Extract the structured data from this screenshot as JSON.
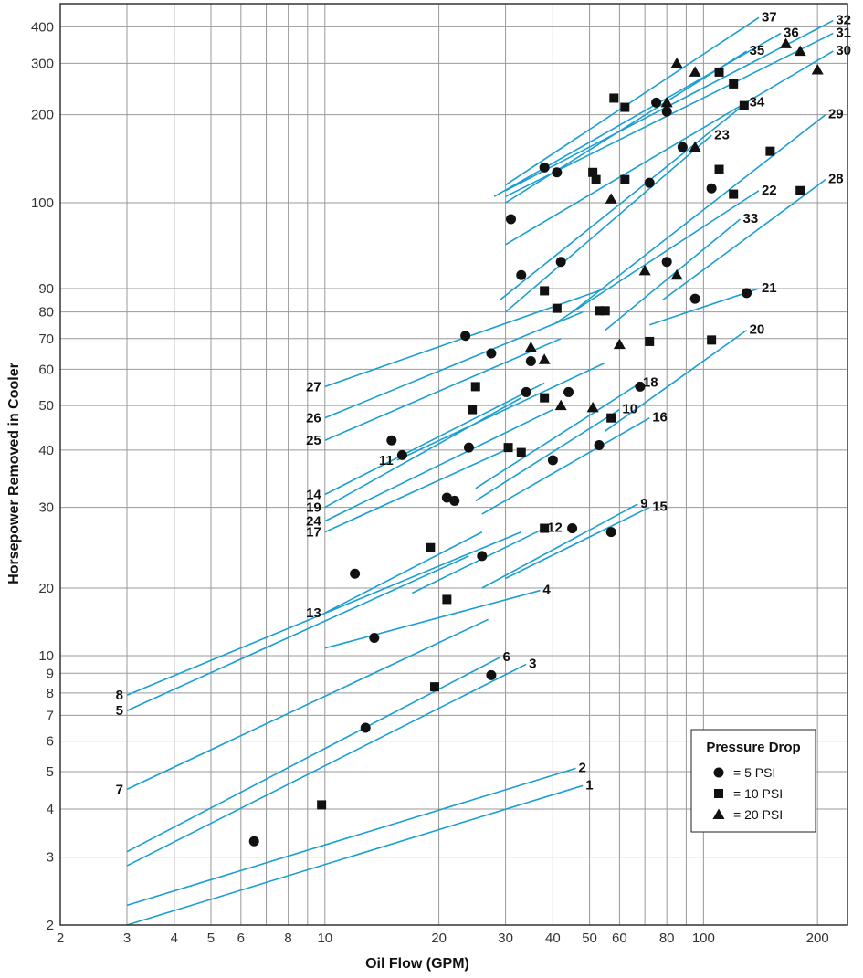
{
  "chart_data": {
    "type": "line",
    "title": "",
    "xlabel": "Oil Flow (GPM)",
    "ylabel": "Horsepower Removed in Cooler",
    "x_scale": "log",
    "y_scale": "log (broken: 2–20 and 90–400)",
    "xlim": [
      2,
      240
    ],
    "ylim": [
      2,
      480
    ],
    "grid": true,
    "x_ticks": [
      "2",
      "3",
      "4",
      "5",
      "6",
      "8",
      "10",
      "20",
      "30",
      "40",
      "50",
      "60",
      "80",
      "100",
      "200"
    ],
    "y_ticks": [
      "2",
      "3",
      "4",
      "5",
      "6",
      "7",
      "8",
      "9",
      "10",
      "20",
      "30",
      "40",
      "50",
      "60",
      "70",
      "80",
      "90",
      "100",
      "200",
      "300",
      "400"
    ],
    "legend": {
      "title": "Pressure Drop",
      "position": "bottom-right",
      "entries": [
        {
          "marker": "circle",
          "label": "=    5 PSI"
        },
        {
          "marker": "square",
          "label": "=  10 PSI"
        },
        {
          "marker": "triangle",
          "label": "=  20 PSI"
        }
      ]
    },
    "line_color": "#1a9fd1",
    "marker_color": "#111111",
    "series": [
      {
        "name": "1",
        "label_side": "end",
        "x": [
          3,
          48
        ],
        "y": [
          2.0,
          4.6
        ],
        "markers": []
      },
      {
        "name": "2",
        "label_side": "end",
        "x": [
          3,
          46
        ],
        "y": [
          2.25,
          5.1
        ],
        "markers": [
          {
            "x": 6.5,
            "y": 3.3,
            "shape": "circle"
          },
          {
            "x": 9.8,
            "y": 4.1,
            "shape": "square"
          }
        ]
      },
      {
        "name": "3",
        "label_side": "end",
        "x": [
          3,
          34
        ],
        "y": [
          2.85,
          9.5
        ],
        "markers": [
          {
            "x": 12.8,
            "y": 6.5,
            "shape": "circle"
          },
          {
            "x": 27.5,
            "y": 8.9,
            "shape": "circle"
          }
        ]
      },
      {
        "name": "6",
        "label_side": "end",
        "x": [
          3,
          29
        ],
        "y": [
          3.1,
          9.9
        ],
        "markers": [
          {
            "x": 19.5,
            "y": 8.3,
            "shape": "square"
          }
        ]
      },
      {
        "name": "7",
        "label_side": "start",
        "x": [
          3,
          27
        ],
        "y": [
          4.5,
          14.5
        ],
        "markers": []
      },
      {
        "name": "4",
        "label_side": "end",
        "x": [
          10,
          37
        ],
        "y": [
          10.8,
          19.5
        ],
        "markers": [
          {
            "x": 13.5,
            "y": 12.0,
            "shape": "circle"
          },
          {
            "x": 21,
            "y": 17.8,
            "shape": "square"
          }
        ]
      },
      {
        "name": "5",
        "label_side": "start",
        "x": [
          3,
          24
        ],
        "y": [
          7.2,
          23.5
        ],
        "markers": []
      },
      {
        "name": "8",
        "label_side": "start",
        "x": [
          3,
          33
        ],
        "y": [
          7.9,
          26.5
        ],
        "markers": []
      },
      {
        "name": "13",
        "label_side": "start",
        "x": [
          10,
          26
        ],
        "y": [
          15.5,
          26.5
        ],
        "markers": [
          {
            "x": 12,
            "y": 21.5,
            "shape": "circle"
          }
        ]
      },
      {
        "name": "12",
        "label_side": "end",
        "x": [
          17,
          38
        ],
        "y": [
          19.0,
          27.0
        ],
        "markers": [
          {
            "x": 19,
            "y": 24.5,
            "shape": "square"
          },
          {
            "x": 26,
            "y": 23.5,
            "shape": "circle"
          },
          {
            "x": 38,
            "y": 27.0,
            "shape": "square"
          }
        ]
      },
      {
        "name": "9",
        "label_side": "end",
        "x": [
          26,
          67
        ],
        "y": [
          20.0,
          30.5
        ],
        "markers": [
          {
            "x": 45,
            "y": 27.0,
            "shape": "circle"
          }
        ]
      },
      {
        "name": "15",
        "label_side": "end",
        "x": [
          30,
          72
        ],
        "y": [
          21.0,
          30.0
        ],
        "markers": [
          {
            "x": 57,
            "y": 26.5,
            "shape": "circle"
          }
        ]
      },
      {
        "name": "17",
        "label_side": "start",
        "x": [
          10,
          30
        ],
        "y": [
          26.5,
          40.0
        ],
        "markers": []
      },
      {
        "name": "24",
        "label_side": "start",
        "x": [
          10,
          40
        ],
        "y": [
          28.0,
          49.0
        ],
        "markers": []
      },
      {
        "name": "19",
        "label_side": "start",
        "x": [
          10,
          33
        ],
        "y": [
          30.0,
          52.0
        ],
        "markers": [
          {
            "x": 15,
            "y": 42,
            "shape": "circle"
          },
          {
            "x": 16,
            "y": 39,
            "shape": "circle"
          }
        ]
      },
      {
        "name": "11",
        "label_side": "start",
        "x": [
          15.5,
          55
        ],
        "y": [
          38.0,
          62.0
        ],
        "markers": [
          {
            "x": 21,
            "y": 31.5,
            "shape": "circle"
          },
          {
            "x": 22,
            "y": 31.0,
            "shape": "circle"
          },
          {
            "x": 24,
            "y": 40.5,
            "shape": "circle"
          }
        ]
      },
      {
        "name": "14",
        "label_side": "start",
        "x": [
          10,
          38
        ],
        "y": [
          32.0,
          56.0
        ],
        "markers": []
      },
      {
        "name": "16",
        "label_side": "end",
        "x": [
          26,
          72
        ],
        "y": [
          29.0,
          47.0
        ],
        "markers": [
          {
            "x": 40,
            "y": 38.0,
            "shape": "circle"
          },
          {
            "x": 53,
            "y": 41.0,
            "shape": "circle"
          }
        ]
      },
      {
        "name": "10",
        "label_side": "end",
        "x": [
          25,
          60
        ],
        "y": [
          31.0,
          49.0
        ],
        "markers": [
          {
            "x": 30.5,
            "y": 40.5,
            "shape": "square"
          },
          {
            "x": 33,
            "y": 39.5,
            "shape": "square"
          },
          {
            "x": 57,
            "y": 47.0,
            "shape": "square"
          }
        ]
      },
      {
        "name": "18",
        "label_side": "end",
        "x": [
          25,
          68
        ],
        "y": [
          33.0,
          56.0
        ],
        "markers": [
          {
            "x": 42,
            "y": 50.0,
            "shape": "triangle"
          },
          {
            "x": 51,
            "y": 49.5,
            "shape": "triangle"
          },
          {
            "x": 68,
            "y": 55.0,
            "shape": "circle"
          }
        ]
      },
      {
        "name": "25",
        "label_side": "start",
        "x": [
          10,
          42
        ],
        "y": [
          42.0,
          70.0
        ],
        "markers": [
          {
            "x": 24.5,
            "y": 49.0,
            "shape": "square"
          },
          {
            "x": 34,
            "y": 53.5,
            "shape": "circle"
          },
          {
            "x": 38,
            "y": 52.0,
            "shape": "square"
          },
          {
            "x": 44,
            "y": 53.5,
            "shape": "circle"
          }
        ]
      },
      {
        "name": "26",
        "label_side": "start",
        "x": [
          10,
          48
        ],
        "y": [
          47.0,
          80.0
        ],
        "markers": [
          {
            "x": 25,
            "y": 55.0,
            "shape": "square"
          },
          {
            "x": 35,
            "y": 62.5,
            "shape": "circle"
          },
          {
            "x": 35,
            "y": 67.0,
            "shape": "triangle"
          },
          {
            "x": 38,
            "y": 63.0,
            "shape": "triangle"
          }
        ]
      },
      {
        "name": "27",
        "label_side": "start",
        "x": [
          10,
          55
        ],
        "y": [
          55.0,
          90.0
        ],
        "markers": [
          {
            "x": 23.5,
            "y": 71.0,
            "shape": "circle"
          },
          {
            "x": 27.5,
            "y": 65.0,
            "shape": "circle"
          }
        ]
      },
      {
        "name": "20",
        "label_side": "end",
        "x": [
          55,
          130
        ],
        "y": [
          44.0,
          73.0
        ],
        "markers": [
          {
            "x": 105,
            "y": 69.5,
            "shape": "square"
          }
        ]
      },
      {
        "name": "21",
        "label_side": "end",
        "x": [
          72,
          140
        ],
        "y": [
          75.0,
          90.0
        ],
        "markers": [
          {
            "x": 95,
            "y": 85.5,
            "shape": "circle"
          },
          {
            "x": 130,
            "y": 88.0,
            "shape": "circle"
          }
        ]
      },
      {
        "name": "33",
        "label_side": "end",
        "x": [
          55,
          125
        ],
        "y": [
          73.0,
          98.0
        ],
        "markers": [
          {
            "x": 53,
            "y": 80.5,
            "shape": "square"
          },
          {
            "x": 60,
            "y": 68.0,
            "shape": "triangle"
          },
          {
            "x": 72,
            "y": 69.0,
            "shape": "square"
          }
        ]
      },
      {
        "name": "22",
        "label_side": "end",
        "x": [
          40,
          140
        ],
        "y": [
          75.0,
          110.0
        ],
        "markers": [
          {
            "x": 80,
            "y": 93.0,
            "shape": "circle"
          },
          {
            "x": 85,
            "y": 91.5,
            "shape": "triangle"
          },
          {
            "x": 70,
            "y": 92.0,
            "shape": "triangle"
          }
        ]
      },
      {
        "name": "28",
        "label_side": "end",
        "x": [
          78,
          210
        ],
        "y": [
          85.0,
          120.0
        ],
        "markers": [
          {
            "x": 180,
            "y": 110.0,
            "shape": "square"
          }
        ]
      },
      {
        "name": "29",
        "label_side": "end",
        "x": [
          45,
          210
        ],
        "y": [
          80.0,
          200.0
        ],
        "markers": [
          {
            "x": 120,
            "y": 107.0,
            "shape": "square"
          },
          {
            "x": 105,
            "y": 112.0,
            "shape": "circle"
          },
          {
            "x": 150,
            "y": 150.0,
            "shape": "square"
          }
        ]
      },
      {
        "name": "23",
        "label_side": "end",
        "x": [
          30,
          105
        ],
        "y": [
          80.0,
          170.0
        ],
        "markers": [
          {
            "x": 31,
            "y": 98.0,
            "shape": "circle"
          },
          {
            "x": 33,
            "y": 91.5,
            "shape": "circle"
          },
          {
            "x": 42,
            "y": 93.0,
            "shape": "circle"
          },
          {
            "x": 38,
            "y": 89.0,
            "shape": "square"
          }
        ]
      },
      {
        "name": "34",
        "label_side": "end",
        "x": [
          29,
          130
        ],
        "y": [
          85.0,
          220.0
        ],
        "markers": [
          {
            "x": 41,
            "y": 81.5,
            "shape": "square"
          },
          {
            "x": 55,
            "y": 80.5,
            "shape": "square"
          },
          {
            "x": 57,
            "y": 103.0,
            "shape": "triangle"
          },
          {
            "x": 62,
            "y": 120.0,
            "shape": "square"
          },
          {
            "x": 72,
            "y": 117.0,
            "shape": "circle"
          },
          {
            "x": 88,
            "y": 155.0,
            "shape": "circle"
          },
          {
            "x": 95,
            "y": 155.0,
            "shape": "triangle"
          },
          {
            "x": 110,
            "y": 130.0,
            "shape": "square"
          },
          {
            "x": 128,
            "y": 215.0,
            "shape": "square"
          }
        ]
      },
      {
        "name": "30",
        "label_side": "end",
        "x": [
          30,
          220
        ],
        "y": [
          95.0,
          330.0
        ],
        "markers": [
          {
            "x": 51,
            "y": 127.0,
            "shape": "square"
          },
          {
            "x": 52,
            "y": 120.0,
            "shape": "square"
          },
          {
            "x": 120,
            "y": 255.0,
            "shape": "square"
          },
          {
            "x": 200,
            "y": 285.0,
            "shape": "triangle"
          }
        ]
      },
      {
        "name": "35",
        "label_side": "end",
        "x": [
          30,
          130
        ],
        "y": [
          100.0,
          330.0
        ],
        "markers": [
          {
            "x": 41,
            "y": 127.0,
            "shape": "circle"
          },
          {
            "x": 75,
            "y": 220.0,
            "shape": "circle"
          },
          {
            "x": 80,
            "y": 220.0,
            "shape": "triangle"
          },
          {
            "x": 80,
            "y": 205.0,
            "shape": "circle"
          },
          {
            "x": 95,
            "y": 280.0,
            "shape": "triangle"
          },
          {
            "x": 110,
            "y": 280.0,
            "shape": "square"
          }
        ]
      },
      {
        "name": "31",
        "label_side": "end",
        "x": [
          30,
          220
        ],
        "y": [
          105.0,
          380.0
        ],
        "markers": [
          {
            "x": 180,
            "y": 330.0,
            "shape": "triangle"
          }
        ]
      },
      {
        "name": "36",
        "label_side": "end",
        "x": [
          28,
          160
        ],
        "y": [
          105.0,
          380.0
        ],
        "markers": [
          {
            "x": 38,
            "y": 132.0,
            "shape": "circle"
          },
          {
            "x": 58,
            "y": 228.0,
            "shape": "square"
          },
          {
            "x": 62,
            "y": 212.0,
            "shape": "square"
          },
          {
            "x": 165,
            "y": 350.0,
            "shape": "triangle"
          }
        ]
      },
      {
        "name": "32",
        "label_side": "end",
        "x": [
          30,
          220
        ],
        "y": [
          110.0,
          420.0
        ],
        "markers": []
      },
      {
        "name": "37",
        "label_side": "end",
        "x": [
          30,
          140
        ],
        "y": [
          115.0,
          430.0
        ],
        "markers": [
          {
            "x": 85,
            "y": 300.0,
            "shape": "triangle"
          }
        ]
      }
    ]
  }
}
